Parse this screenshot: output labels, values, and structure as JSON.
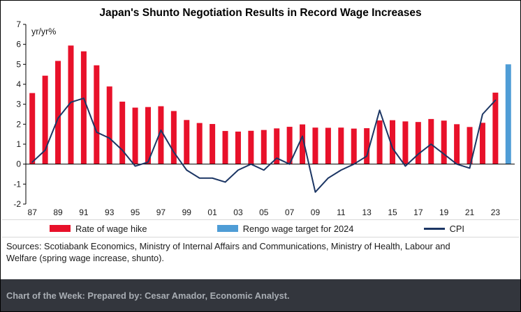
{
  "title": "Japan's Shunto Negotiation Results in Record Wage Increases",
  "legend": {
    "items": [
      {
        "label": "Rate of wage hike",
        "marker": "red-bar-swatch"
      },
      {
        "label": "Rengo wage target for 2024",
        "marker": "blue-bar-swatch"
      },
      {
        "label": "CPI",
        "marker": "navy-line-swatch"
      }
    ]
  },
  "sources": "Sources: Scotiabank Economics, Ministry of Internal Affairs and Communications, Ministry of Health, Labour and Welfare (spring wage increase, shunto).",
  "footer": "Chart of the Week: Prepared by: Cesar Amador, Economic Analyst.",
  "colors": {
    "wage_bar": "#e8112a",
    "target_bar": "#4f9dd6",
    "cpi_line": "#1c3664",
    "axis": "#000000",
    "tick_text": "#1a1a1a",
    "footer_bg": "#33363d",
    "footer_text": "#a9aeb4"
  },
  "chart_data": {
    "type": "bar",
    "annotation": "yr/yr%",
    "ylim": [
      -2,
      7
    ],
    "yticks": [
      7,
      6,
      5,
      4,
      3,
      2,
      1,
      0,
      -1,
      -2
    ],
    "xtick_labels": [
      "87",
      "89",
      "91",
      "93",
      "95",
      "97",
      "99",
      "01",
      "03",
      "05",
      "07",
      "09",
      "11",
      "13",
      "15",
      "17",
      "19",
      "21",
      "23"
    ],
    "years": [
      1987,
      1988,
      1989,
      1990,
      1991,
      1992,
      1993,
      1994,
      1995,
      1996,
      1997,
      1998,
      1999,
      2000,
      2001,
      2002,
      2003,
      2004,
      2005,
      2006,
      2007,
      2008,
      2009,
      2010,
      2011,
      2012,
      2013,
      2014,
      2015,
      2016,
      2017,
      2018,
      2019,
      2020,
      2021,
      2022,
      2023
    ],
    "grid": false,
    "legend_position": "bottom",
    "series": [
      {
        "name": "Rate of wage hike",
        "type": "bar",
        "color": "#e8112a",
        "values": [
          3.56,
          4.43,
          5.17,
          5.94,
          5.65,
          4.95,
          3.89,
          3.13,
          2.83,
          2.86,
          2.9,
          2.66,
          2.21,
          2.06,
          2.01,
          1.66,
          1.63,
          1.67,
          1.71,
          1.79,
          1.87,
          1.99,
          1.83,
          1.82,
          1.83,
          1.78,
          1.8,
          2.19,
          2.2,
          2.14,
          2.11,
          2.26,
          2.18,
          2.0,
          1.86,
          2.07,
          3.58
        ]
      },
      {
        "name": "Rengo wage target for 2024",
        "type": "bar",
        "color": "#4f9dd6",
        "x": 2024,
        "value": 5.0
      },
      {
        "name": "CPI",
        "type": "line",
        "color": "#1c3664",
        "values": [
          0.1,
          0.7,
          2.3,
          3.1,
          3.3,
          1.6,
          1.3,
          0.7,
          -0.1,
          0.1,
          1.7,
          0.6,
          -0.3,
          -0.7,
          -0.7,
          -0.9,
          -0.3,
          0.0,
          -0.3,
          0.3,
          0.0,
          1.4,
          -1.4,
          -0.7,
          -0.3,
          0.0,
          0.4,
          2.7,
          0.8,
          -0.1,
          0.5,
          1.0,
          0.5,
          0.0,
          -0.2,
          2.5,
          3.2
        ]
      }
    ]
  }
}
